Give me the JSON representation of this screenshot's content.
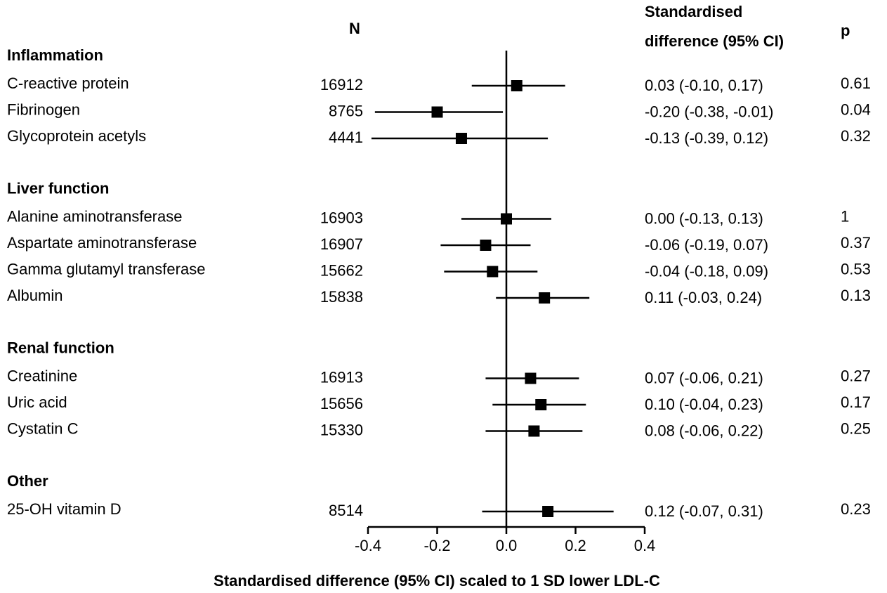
{
  "chart_data": {
    "type": "forest",
    "n_header": "N",
    "ci_header": [
      "Standardised",
      "difference (95% CI)"
    ],
    "p_header": "p",
    "xlabel": "Standardised difference (95% CI) scaled to 1 SD lower LDL-C",
    "xlim": [
      -0.4,
      0.4
    ],
    "xticks": [
      -0.4,
      -0.2,
      {
        "value": 0,
        "label": "0.0"
      },
      0.2,
      0.4
    ],
    "color": "#000000",
    "groups": [
      {
        "name": "Inflammation",
        "categories": [
          "C-reactive  protein",
          "Fibrinogen",
          "Glycoprotein acetyls"
        ],
        "n": [
          16912,
          8765,
          4441
        ],
        "values": [
          0.03,
          -0.2,
          -0.13
        ],
        "lower": [
          -0.1,
          -0.38,
          -0.39
        ],
        "upper": [
          0.17,
          -0.01,
          0.12
        ],
        "value_labels": [
          "0.03 (-0.10, 0.17)",
          "-0.20 (-0.38, -0.01)",
          "-0.13 (-0.39, 0.12)"
        ],
        "p": [
          0.61,
          0.04,
          0.32
        ]
      },
      {
        "name": "Liver function",
        "categories": [
          "Alanine aminotransferase",
          "Aspartate aminotransferase",
          "Gamma glutamyl transferase",
          "Albumin"
        ],
        "n": [
          16903,
          16907,
          15662,
          15838
        ],
        "values": [
          0.0,
          -0.06,
          -0.04,
          0.11
        ],
        "lower": [
          -0.13,
          -0.19,
          -0.18,
          -0.03
        ],
        "upper": [
          0.13,
          0.07,
          0.09,
          0.24
        ],
        "value_labels": [
          "0.00 (-0.13, 0.13)",
          "-0.06 (-0.19, 0.07)",
          "-0.04 (-0.18, 0.09)",
          "0.11 (-0.03, 0.24)"
        ],
        "p": [
          1,
          0.37,
          0.53,
          0.13
        ]
      },
      {
        "name": "Renal function",
        "categories": [
          "Creatinine",
          "Uric acid",
          "Cystatin C"
        ],
        "n": [
          16913,
          15656,
          15330
        ],
        "values": [
          0.07,
          0.1,
          0.08
        ],
        "lower": [
          -0.06,
          -0.04,
          -0.06
        ],
        "upper": [
          0.21,
          0.23,
          0.22
        ],
        "value_labels": [
          "0.07 (-0.06, 0.21)",
          "0.10 (-0.04, 0.23)",
          "0.08 (-0.06, 0.22)"
        ],
        "p": [
          0.27,
          0.17,
          0.25
        ]
      },
      {
        "name": "Other",
        "categories": [
          "25-OH  vitamin D"
        ],
        "n": [
          8514
        ],
        "values": [
          0.12
        ],
        "lower": [
          -0.07
        ],
        "upper": [
          0.31
        ],
        "value_labels": [
          "0.12 (-0.07, 0.31)"
        ],
        "p": [
          0.23
        ]
      }
    ]
  }
}
